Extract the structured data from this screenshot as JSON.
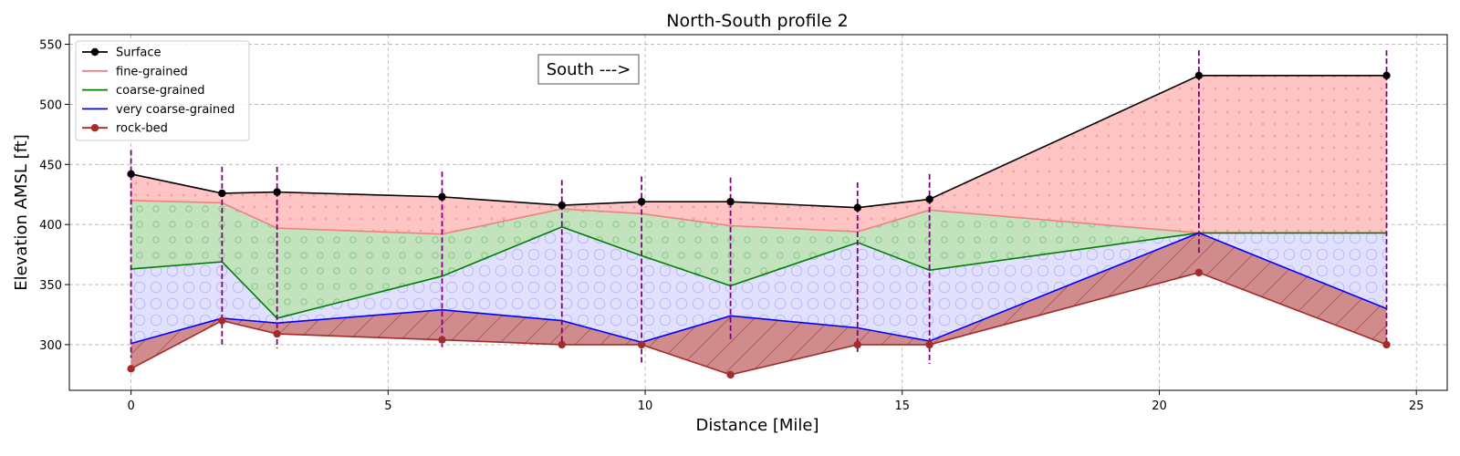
{
  "chart_data": {
    "type": "area",
    "title": "North-South profile 2",
    "xlabel": "Distance [Mile]",
    "ylabel": "Elevation AMSL [ft]",
    "annotation": "South --->",
    "xlim": [
      -1.2,
      25.6
    ],
    "ylim": [
      262,
      558
    ],
    "xticks": [
      0,
      5,
      10,
      15,
      20,
      25
    ],
    "yticks": [
      300,
      350,
      400,
      450,
      500,
      550
    ],
    "grid": true,
    "legend_position": "top-left",
    "x": [
      0,
      1.77,
      2.84,
      6.05,
      8.38,
      9.93,
      11.66,
      14.13,
      15.53,
      20.77,
      24.42
    ],
    "series": [
      {
        "name": "Surface",
        "color": "#000000",
        "marker": "circle",
        "values": [
          442,
          426,
          427,
          423,
          416,
          419,
          419,
          414,
          421,
          524,
          524
        ]
      },
      {
        "name": "fine-grained",
        "color": "#f08080",
        "marker": "none",
        "values": [
          420,
          418,
          397,
          392,
          413,
          409,
          399,
          394,
          412,
          393,
          393
        ]
      },
      {
        "name": "coarse-grained",
        "color": "#008000",
        "marker": "none",
        "values": [
          363,
          369,
          322,
          357,
          398,
          374,
          349,
          385,
          362,
          393,
          393
        ]
      },
      {
        "name": "very coarse-grained",
        "color": "#0000ff",
        "marker": "none",
        "values": [
          301,
          322,
          318,
          329,
          320,
          302,
          324,
          314,
          303,
          393,
          330
        ]
      },
      {
        "name": "rock-bed",
        "color": "#a52a2a",
        "marker": "circle",
        "values": [
          280,
          320,
          309,
          304,
          300,
          300,
          275,
          300,
          300,
          360,
          300
        ]
      }
    ],
    "fill_colors": {
      "fine": "#ffc4c4",
      "coarse": "#c3e3bf",
      "very_coarse": "#e1e1fe",
      "rock": "#d08c8c"
    },
    "wells": [
      {
        "x": 0,
        "top": 462,
        "bottom": 289
      },
      {
        "x": 1.77,
        "top": 448,
        "bottom": 300
      },
      {
        "x": 2.84,
        "top": 448,
        "bottom": 297
      },
      {
        "x": 6.05,
        "top": 444,
        "bottom": 298
      },
      {
        "x": 8.38,
        "top": 437,
        "bottom": 302
      },
      {
        "x": 9.93,
        "top": 440,
        "bottom": 283
      },
      {
        "x": 11.66,
        "top": 439,
        "bottom": 304
      },
      {
        "x": 14.13,
        "top": 435,
        "bottom": 294
      },
      {
        "x": 15.53,
        "top": 442,
        "bottom": 284
      },
      {
        "x": 20.77,
        "top": 545,
        "bottom": 375
      },
      {
        "x": 24.42,
        "top": 545,
        "bottom": 300
      }
    ],
    "well_color": "#800080"
  }
}
